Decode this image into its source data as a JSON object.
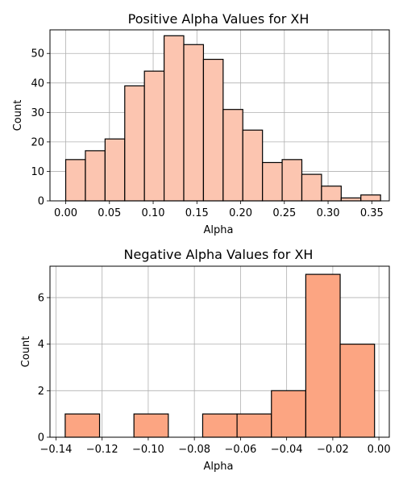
{
  "chart_data": [
    {
      "type": "bar",
      "title": "Positive Alpha Values for XH",
      "xlabel": "Alpha",
      "ylabel": "Count",
      "color": "#fcc5b0",
      "edge_color": "#000000",
      "grid": true,
      "xlim": [
        -0.018,
        0.37
      ],
      "ylim": [
        0,
        58
      ],
      "xticks": [
        0.0,
        0.05,
        0.1,
        0.15,
        0.2,
        0.25,
        0.3,
        0.35
      ],
      "xtick_labels": [
        "0.00",
        "0.05",
        "0.10",
        "0.15",
        "0.20",
        "0.25",
        "0.30",
        "0.35"
      ],
      "yticks": [
        0,
        10,
        20,
        30,
        40,
        50
      ],
      "ytick_labels": [
        "0",
        "10",
        "20",
        "30",
        "40",
        "50"
      ],
      "bin_edges": [
        0.0,
        0.0225,
        0.045,
        0.0675,
        0.09,
        0.1125,
        0.135,
        0.1575,
        0.18,
        0.2025,
        0.225,
        0.2475,
        0.27,
        0.2925,
        0.315,
        0.3375,
        0.36
      ],
      "values": [
        14,
        17,
        21,
        39,
        44,
        56,
        53,
        48,
        31,
        24,
        13,
        14,
        9,
        5,
        1,
        2
      ]
    },
    {
      "type": "bar",
      "title": "Negative Alpha Values for XH",
      "xlabel": "Alpha",
      "ylabel": "Count",
      "color": "#fca582",
      "edge_color": "#000000",
      "grid": true,
      "xlim": [
        -0.1426,
        0.0045
      ],
      "ylim": [
        0,
        7.35
      ],
      "xticks": [
        -0.14,
        -0.12,
        -0.1,
        -0.08,
        -0.06,
        -0.04,
        -0.02,
        0.0
      ],
      "xtick_labels": [
        "−0.14",
        "−0.12",
        "−0.10",
        "−0.08",
        "−0.06",
        "−0.04",
        "−0.02",
        "0.00"
      ],
      "yticks": [
        0,
        2,
        4,
        6
      ],
      "ytick_labels": [
        "0",
        "2",
        "4",
        "6"
      ],
      "bin_edges": [
        -0.136,
        -0.1211,
        -0.1062,
        -0.0913,
        -0.0764,
        -0.0615,
        -0.0466,
        -0.0317,
        -0.0168,
        -0.0019
      ],
      "values": [
        1,
        0,
        1,
        0,
        1,
        1,
        2,
        7,
        4
      ]
    }
  ]
}
